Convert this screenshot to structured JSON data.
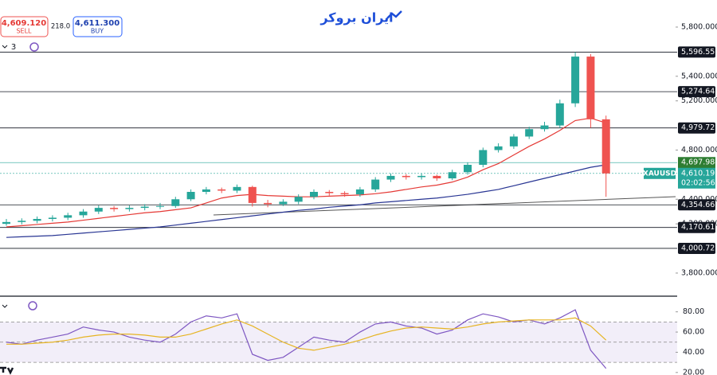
{
  "header": {
    "sell_price": "4,609.120",
    "sell_label": "SELL",
    "spread": "218.0",
    "buy_price": "4,611.300",
    "buy_label": "BUY",
    "logo": "ایران بروکر",
    "interval": "3"
  },
  "chart_data": [
    {
      "type": "candlestick",
      "symbol": "XAUUSD",
      "open": [
        4200,
        4215,
        4225,
        4240,
        4250,
        4270,
        4300,
        4330,
        4320,
        4330,
        4340,
        4345,
        4400,
        4460,
        4480,
        4470,
        4500,
        4370,
        4360,
        4380,
        4420,
        4460,
        4450,
        4440,
        4480,
        4560,
        4590,
        4580,
        4590,
        4570,
        4620,
        4680,
        4800,
        4830,
        4910,
        4970,
        5000,
        5180,
        5560,
        5050
      ],
      "high": [
        4240,
        4245,
        4260,
        4270,
        4290,
        4320,
        4350,
        4345,
        4350,
        4360,
        4370,
        4420,
        4480,
        4500,
        4495,
        4520,
        4510,
        4395,
        4400,
        4440,
        4480,
        4475,
        4465,
        4500,
        4580,
        4610,
        4605,
        4610,
        4600,
        4640,
        4700,
        4820,
        4855,
        4930,
        4990,
        5030,
        5210,
        5596,
        5580,
        5080
      ],
      "low": [
        4185,
        4195,
        4205,
        4220,
        4230,
        4250,
        4280,
        4300,
        4300,
        4310,
        4320,
        4330,
        4385,
        4440,
        4450,
        4450,
        4340,
        4335,
        4345,
        4360,
        4400,
        4430,
        4420,
        4420,
        4460,
        4540,
        4560,
        4560,
        4550,
        4555,
        4600,
        4660,
        4780,
        4810,
        4890,
        4950,
        4980,
        5150,
        4980,
        4420
      ],
      "close": [
        4215,
        4225,
        4240,
        4250,
        4270,
        4300,
        4330,
        4320,
        4330,
        4340,
        4345,
        4400,
        4460,
        4480,
        4470,
        4500,
        4370,
        4360,
        4380,
        4420,
        4460,
        4450,
        4440,
        4480,
        4560,
        4590,
        4580,
        4590,
        4570,
        4620,
        4680,
        4800,
        4830,
        4910,
        4970,
        5000,
        5180,
        5560,
        5050,
        4610
      ],
      "up_color": "#26a69a",
      "down_color": "#ef5350",
      "overlays": [
        {
          "color": "#e53935",
          "values": [
            4175,
            4185,
            4195,
            4205,
            4215,
            4230,
            4245,
            4260,
            4275,
            4290,
            4300,
            4315,
            4330,
            4370,
            4410,
            4430,
            4440,
            4430,
            4425,
            4420,
            4420,
            4425,
            4430,
            4435,
            4445,
            4460,
            4480,
            4500,
            4515,
            4540,
            4580,
            4640,
            4690,
            4760,
            4830,
            4890,
            4960,
            5040,
            5060,
            5020
          ]
        },
        {
          "color": "#283593",
          "values": [
            4090,
            4095,
            4100,
            4105,
            4115,
            4125,
            4135,
            4145,
            4155,
            4165,
            4175,
            4190,
            4205,
            4220,
            4235,
            4250,
            4265,
            4280,
            4295,
            4310,
            4320,
            4335,
            4345,
            4355,
            4370,
            4380,
            4390,
            4400,
            4410,
            4425,
            4440,
            4460,
            4480,
            4510,
            4540,
            4570,
            4600,
            4630,
            4660,
            4680
          ]
        }
      ],
      "ylim": [
        3625,
        6020
      ],
      "yticks": [
        {
          "value": 5800,
          "label": "5,800.000"
        },
        {
          "value": 5400,
          "label": "5,400.000"
        },
        {
          "value": 5200,
          "label": "5,200.000"
        },
        {
          "value": 4800,
          "label": "4,800.000"
        },
        {
          "value": 4400,
          "label": "4,400.000"
        },
        {
          "value": 4200,
          "label": "4,200.000"
        },
        {
          "value": 3800,
          "label": "3,800.000"
        }
      ],
      "levels": [
        {
          "value": 5596.551,
          "label": "5,596.551"
        },
        {
          "value": 5274.642,
          "label": "5,274.642"
        },
        {
          "value": 4979.725,
          "label": "4,979.725"
        },
        {
          "value": 4354.662,
          "label": "4,354.662"
        },
        {
          "value": 4170.613,
          "label": "4,170.613"
        },
        {
          "value": 4000.721,
          "label": "4,000.721"
        }
      ],
      "prev_price": {
        "value": 4697.984,
        "label": "4,697.984"
      },
      "last_price": {
        "value": 4610.195,
        "label": "4,610.195",
        "countdown": "02:02:56"
      }
    },
    {
      "type": "line",
      "series": [
        {
          "color": "#7e57c2",
          "values": [
            50,
            48,
            52,
            55,
            58,
            65,
            62,
            60,
            55,
            52,
            50,
            58,
            70,
            76,
            74,
            78,
            38,
            32,
            35,
            45,
            55,
            52,
            50,
            60,
            68,
            70,
            66,
            64,
            58,
            62,
            72,
            78,
            75,
            70,
            72,
            68,
            74,
            82,
            42,
            24
          ]
        },
        {
          "color": "#e6b422",
          "values": [
            48,
            48,
            49,
            50,
            52,
            55,
            57,
            58,
            58,
            57,
            55,
            55,
            58,
            63,
            68,
            72,
            66,
            58,
            50,
            44,
            42,
            45,
            48,
            52,
            57,
            61,
            64,
            65,
            64,
            63,
            65,
            68,
            70,
            71,
            72,
            72,
            72,
            74,
            66,
            52
          ]
        }
      ],
      "ylim": [
        17.5,
        95.5
      ],
      "yticks": [
        {
          "value": 80,
          "label": "80.00"
        },
        {
          "value": 60,
          "label": "60.00"
        },
        {
          "value": 40,
          "label": "40.00"
        },
        {
          "value": 20,
          "label": "20.00"
        }
      ],
      "band": [
        30,
        70
      ],
      "midline": 50
    }
  ]
}
